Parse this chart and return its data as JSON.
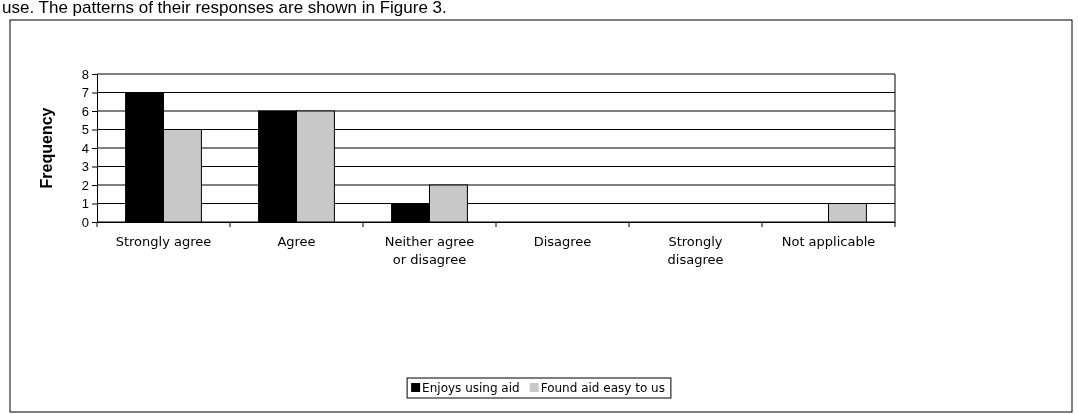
{
  "chart_data": {
    "type": "bar",
    "ylabel": "Frequency",
    "categories": [
      "Strongly agree",
      "Agree",
      "Neither agree or disagree",
      "Disagree",
      "Strongly disagree",
      "Not applicable"
    ],
    "series": [
      {
        "name": "Enjoys using aid",
        "color": "#000000",
        "values": [
          7,
          6,
          1,
          0,
          0,
          0
        ]
      },
      {
        "name": "Found aid easy to us",
        "color": "#c8c8c8",
        "values": [
          5,
          6,
          2,
          0,
          0,
          1
        ]
      }
    ],
    "ylim": [
      0,
      8
    ],
    "yticks": [
      0,
      1,
      2,
      3,
      4,
      5,
      6,
      7,
      8
    ],
    "grid": "y",
    "legend": "bottom",
    "annotations": [
      "use. The patterns of their responses are shown in Figure 3."
    ]
  }
}
